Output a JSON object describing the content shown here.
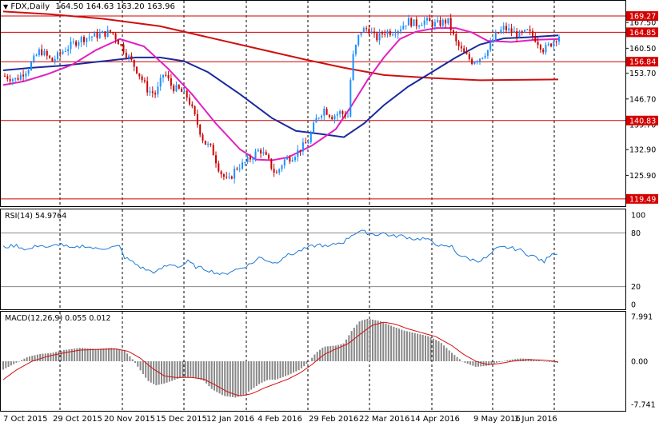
{
  "header": {
    "title": "FDX,Daily",
    "ohlc": "164.50 164.63 163.20 163.96"
  },
  "price_pane": {
    "level_lines": [
      {
        "value": 169.27,
        "label": "169.27"
      },
      {
        "value": 164.85,
        "label": "164.85"
      },
      {
        "value": 156.84,
        "label": "156.84"
      },
      {
        "value": 140.83,
        "label": "140.83"
      },
      {
        "value": 119.49,
        "label": "119.49"
      }
    ],
    "axis_ticks": [
      "167.50",
      "160.50",
      "153.70",
      "146.70",
      "139.70",
      "132.90",
      "125.90"
    ],
    "current_price": "163.96"
  },
  "rsi_pane": {
    "title": "RSI(14) 54.9764",
    "axis_ticks": [
      "100",
      "80",
      "20",
      "0"
    ],
    "levels": [
      80,
      20
    ]
  },
  "macd_pane": {
    "title": "MACD(12,26,9) 0.055 0.012",
    "axis_ticks": [
      "7.991",
      "0.00",
      "-7.741"
    ]
  },
  "x_axis": {
    "labels": [
      "7 Oct 2015",
      "29 Oct 2015",
      "20 Nov 2015",
      "15 Dec 2015",
      "12 Jan 2016",
      "4 Feb 2016",
      "29 Feb 2016",
      "22 Mar 2016",
      "14 Apr 2016",
      "9 May 2016",
      "1 Jun 2016"
    ]
  },
  "colors": {
    "bull_candle": "#1e90ff",
    "bear_candle": "#cc0000",
    "ma_fast": "#e020c0",
    "ma_mid": "#1a2a9e",
    "ma_slow": "#cc1010",
    "rsi_line": "#1e7ad6",
    "macd_hist": "#888888",
    "macd_signal": "#d01010",
    "level_line": "#cc0000",
    "level_tag_bg": "#d40000"
  }
}
